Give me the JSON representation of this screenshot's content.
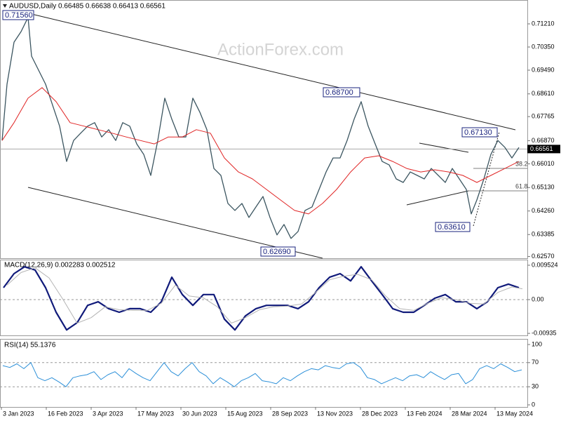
{
  "chart_data": [
    {
      "type": "line",
      "title": "AUDUSD,Daily  0.66485 0.66638 0.66413 0.66561",
      "watermark": "ActionForex.com",
      "xlim": [
        0,
        376
      ],
      "ylim": [
        0.62506,
        0.72096
      ],
      "yticks": [
        {
          "value": 0.7121,
          "label": "0.71210"
        },
        {
          "value": 0.7035,
          "label": "0.70350"
        },
        {
          "value": 0.6949,
          "label": "0.69490"
        },
        {
          "value": 0.6861,
          "label": "0.68610"
        },
        0.67765,
        {
          "value": 0.6687,
          "label": "0.66870"
        },
        {
          "value": 0.6601,
          "label": "0.66010"
        },
        {
          "value": 0.6513,
          "label": "0.65130"
        },
        {
          "value": 0.6426,
          "label": "0.64260"
        },
        0.63385,
        {
          "value": 0.6257,
          "label": "0.62570"
        }
      ],
      "last_price": {
        "value": 0.66561,
        "label": "0.66561"
      },
      "annotations": [
        "0.71560",
        "0.68700",
        "0.67130",
        "0.63610",
        "0.62690",
        "38.2",
        "61.8"
      ],
      "series": [
        {
          "name": "AUDUSD",
          "color": "#3b5560",
          "width": 1.3,
          "x": [
            1.5,
            5,
            10,
            15,
            20,
            22.5,
            27.5,
            32.5,
            37.5,
            42.5,
            47.5,
            52.5,
            57.5,
            62.5,
            67.5,
            72.5,
            77.5,
            82.5,
            87.5,
            92.5,
            97.5,
            102.5,
            107.5,
            112.5,
            117.5,
            122.5,
            127.5,
            132.5,
            137.5,
            142.5,
            147.5,
            152.5,
            157.5,
            162.5,
            167.5,
            172.5,
            177.5,
            182.5,
            187.5,
            192.5,
            197.5,
            202.5,
            207.5,
            212.5,
            217.5,
            222.5,
            227.5,
            232.5,
            237.5,
            242.5,
            247.5,
            252.5,
            257.5,
            262.5,
            267.5,
            272.5,
            277.5,
            282.5,
            287.5,
            292.5,
            297.5,
            302.5,
            307.5,
            312.5,
            317.5,
            322.5,
            327.5,
            332.5,
            336,
            340,
            345,
            350,
            355,
            360,
            365,
            370
          ],
          "values": [
            0.6688,
            0.6897,
            0.7053,
            0.7092,
            0.7145,
            0.7001,
            0.6949,
            0.6897,
            0.6819,
            0.6741,
            0.661,
            0.6688,
            0.6715,
            0.6741,
            0.6754,
            0.6701,
            0.6728,
            0.6688,
            0.6754,
            0.6741,
            0.6675,
            0.6636,
            0.6558,
            0.6688,
            0.6845,
            0.6767,
            0.6701,
            0.6701,
            0.6845,
            0.6793,
            0.6728,
            0.6584,
            0.6558,
            0.6454,
            0.6428,
            0.6454,
            0.6402,
            0.6441,
            0.648,
            0.6402,
            0.6337,
            0.6376,
            0.6324,
            0.635,
            0.6428,
            0.6441,
            0.6506,
            0.6571,
            0.6623,
            0.6623,
            0.6688,
            0.6767,
            0.6832,
            0.6741,
            0.6675,
            0.661,
            0.6597,
            0.6545,
            0.6532,
            0.6571,
            0.6558,
            0.6545,
            0.6584,
            0.6558,
            0.6532,
            0.6584,
            0.6545,
            0.6506,
            0.6415,
            0.6467,
            0.6545,
            0.6636,
            0.6688,
            0.6662,
            0.6623,
            0.6662
          ]
        },
        {
          "name": "MA",
          "color": "#e02424",
          "width": 1,
          "x": [
            1.5,
            10,
            20,
            30,
            40,
            50,
            60,
            70,
            80,
            90,
            100,
            110,
            120,
            130,
            140,
            150,
            160,
            170,
            180,
            190,
            200,
            210,
            220,
            230,
            240,
            250,
            260,
            270,
            280,
            290,
            300,
            310,
            320,
            330,
            340,
            350,
            360,
            370
          ],
          "values": [
            0.6688,
            0.6754,
            0.6845,
            0.6884,
            0.6832,
            0.6754,
            0.6741,
            0.6728,
            0.6715,
            0.6701,
            0.6688,
            0.6675,
            0.6701,
            0.6701,
            0.6728,
            0.6715,
            0.6623,
            0.6571,
            0.6545,
            0.6506,
            0.6467,
            0.6428,
            0.6415,
            0.6454,
            0.6506,
            0.6571,
            0.6623,
            0.6631,
            0.661,
            0.6584,
            0.6571,
            0.6579,
            0.6571,
            0.6558,
            0.6532,
            0.6558,
            0.6584,
            0.661
          ]
        }
      ]
    },
    {
      "type": "line",
      "title": "MACD(12,26,9) 0.002283 0.002512",
      "xlim": [
        0,
        376
      ],
      "ylim": [
        -0.00991,
        0.01108
      ],
      "yticks": [
        0.009524,
        {
          "value": 0,
          "label": "0.00"
        },
        -0.00935
      ],
      "hlines": [
        0
      ],
      "series": [
        {
          "name": "MACD",
          "color": "#101a7a",
          "width": 2.2,
          "x": [
            2.5,
            10,
            17.5,
            25,
            32.5,
            40,
            47.5,
            55,
            62.5,
            70,
            77.5,
            85,
            92.5,
            100,
            107.5,
            115,
            122.5,
            130,
            137.5,
            145,
            152.5,
            160,
            167.5,
            175,
            182.5,
            190,
            197.5,
            205,
            212.5,
            220,
            227.5,
            235,
            242.5,
            250,
            257.5,
            265,
            272.5,
            280,
            287.5,
            295,
            302.5,
            310,
            317.5,
            325,
            332.5,
            340,
            347.5,
            355,
            362.5,
            370
          ],
          "values": [
            0.0033,
            0.0072,
            0.0091,
            0.0082,
            0.0033,
            -0.0035,
            -0.0084,
            -0.0064,
            -0.0016,
            -0.0006,
            -0.0025,
            -0.0035,
            -0.0025,
            -0.0025,
            -0.0035,
            -0.0006,
            0.0062,
            0.0014,
            -0.0016,
            0.0014,
            0.0014,
            -0.0054,
            -0.0084,
            -0.0045,
            -0.0025,
            -0.0016,
            -0.0016,
            -0.0016,
            -0.0025,
            -0.0006,
            0.0033,
            0.0062,
            0.0072,
            0.0052,
            0.0091,
            0.0052,
            0.0014,
            -0.0025,
            -0.0035,
            -0.0035,
            -0.0016,
            0.0004,
            0.0014,
            -0.0006,
            -0.0006,
            -0.0025,
            -0.0006,
            0.0033,
            0.0043,
            0.0033
          ]
        },
        {
          "name": "Signal",
          "color": "#b4b4b4",
          "width": 1,
          "x": [
            5,
            15,
            25,
            35,
            45,
            55,
            65,
            75,
            85,
            95,
            105,
            115,
            125,
            135,
            145,
            155,
            165,
            175,
            185,
            195,
            205,
            215,
            225,
            235,
            245,
            255,
            265,
            275,
            285,
            295,
            305,
            315,
            325,
            335,
            345,
            355,
            365,
            372.5
          ],
          "values": [
            0.004,
            0.0075,
            0.0088,
            0.006,
            0.0,
            -0.0065,
            -0.005,
            -0.002,
            -0.0028,
            -0.003,
            -0.003,
            -0.001,
            0.004,
            0.001,
            0.0005,
            -0.002,
            -0.0065,
            -0.005,
            -0.0028,
            -0.002,
            -0.0018,
            -0.0012,
            0.002,
            0.0055,
            0.0065,
            0.007,
            0.0055,
            0.001,
            -0.0025,
            -0.003,
            -0.001,
            0.0005,
            0.0,
            -0.001,
            -0.0012,
            0.002,
            0.0035,
            0.003
          ]
        }
      ]
    },
    {
      "type": "line",
      "title": "RSI(14) 55.1376",
      "xlim": [
        0,
        376
      ],
      "ylim": [
        -3.5,
        109.3
      ],
      "yticks": [
        100,
        70,
        30,
        0
      ],
      "hlines": [
        70,
        30
      ],
      "xticks": [
        {
          "value": 1,
          "label": "3 Jan 2023"
        },
        {
          "value": 33,
          "label": "16 Feb 2023"
        },
        {
          "value": 65,
          "label": "3 Apr 2023"
        },
        {
          "value": 97,
          "label": "17 May 2023"
        },
        {
          "value": 129,
          "label": "30 Jun 2023"
        },
        {
          "value": 161,
          "label": "15 Aug 2023"
        },
        {
          "value": 193,
          "label": "28 Sep 2023"
        },
        {
          "value": 225,
          "label": "13 Nov 2023"
        },
        {
          "value": 257,
          "label": "28 Dec 2023"
        },
        {
          "value": 289,
          "label": "13 Feb 2024"
        },
        {
          "value": 321,
          "label": "28 Mar 2024"
        },
        {
          "value": 353,
          "label": "13 May 2024"
        }
      ],
      "series": [
        {
          "name": "RSI",
          "color": "#2b8fd8",
          "width": 1,
          "x": [
            2,
            7,
            12,
            17,
            22,
            27,
            32,
            37,
            42,
            47,
            52,
            57,
            62,
            67,
            72,
            77,
            82,
            87,
            92,
            97,
            102,
            107,
            112,
            117,
            122,
            127,
            132,
            137,
            142,
            147,
            152,
            157,
            162,
            167,
            172,
            177,
            182,
            187,
            192,
            197,
            202,
            207,
            212,
            217,
            222,
            227,
            232,
            237,
            242,
            247,
            252,
            257,
            262,
            267,
            272,
            277,
            282,
            287,
            292,
            297,
            302,
            307,
            312,
            317,
            322,
            327,
            332,
            337,
            342,
            347,
            352,
            357,
            362,
            367,
            372
          ],
          "values": [
            65,
            62,
            68,
            60,
            70,
            45,
            40,
            45,
            38,
            30,
            45,
            48,
            50,
            55,
            42,
            50,
            55,
            45,
            60,
            52,
            45,
            40,
            55,
            70,
            55,
            48,
            60,
            70,
            55,
            48,
            35,
            45,
            38,
            30,
            40,
            45,
            52,
            40,
            38,
            35,
            45,
            40,
            48,
            55,
            60,
            58,
            65,
            62,
            60,
            68,
            70,
            62,
            45,
            42,
            35,
            40,
            45,
            40,
            48,
            50,
            45,
            55,
            48,
            42,
            50,
            52,
            35,
            42,
            60,
            65,
            60,
            68,
            62,
            55,
            58
          ]
        }
      ]
    }
  ]
}
